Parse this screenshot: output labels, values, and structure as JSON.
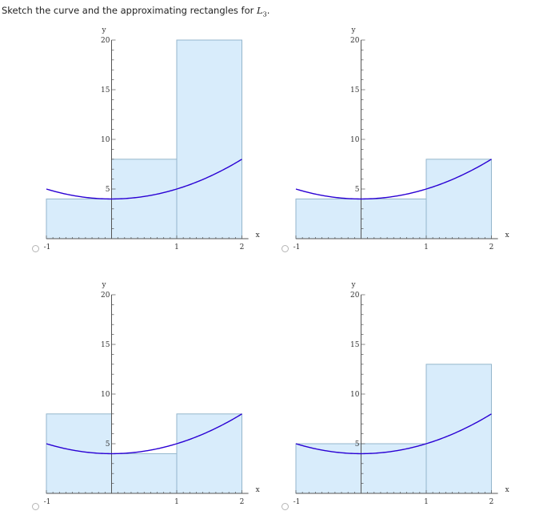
{
  "question": {
    "text": "Sketch the curve and the approximating rectangles for ",
    "math_main": "L",
    "math_sub": "3",
    "suffix": "."
  },
  "colors": {
    "curve": "#2a00d4",
    "rect_fill": "#d8ecfb",
    "rect_stroke": "#94b6cc",
    "axis": "#555555"
  },
  "chart_data": [
    {
      "type": "area",
      "function": "y = x^2 + 4",
      "x_range": [
        -1,
        2
      ],
      "xlim": [
        -1,
        2.1
      ],
      "ylim": [
        0,
        20
      ],
      "xlabel": "x",
      "ylabel": "y",
      "x_ticks": [
        "-1",
        "1",
        "2"
      ],
      "y_ticks": [
        "5",
        "10",
        "15",
        "20"
      ],
      "rectangles": [
        {
          "x0": -1,
          "x1": 0,
          "height": 4
        },
        {
          "x0": 0,
          "x1": 1,
          "height": 8
        },
        {
          "x0": 1,
          "x1": 2,
          "height": 20
        }
      ],
      "selected": false
    },
    {
      "type": "area",
      "function": "y = x^2 + 4",
      "x_range": [
        -1,
        2
      ],
      "xlim": [
        -1,
        2.1
      ],
      "ylim": [
        0,
        20
      ],
      "xlabel": "x",
      "ylabel": "y",
      "x_ticks": [
        "-1",
        "1",
        "2"
      ],
      "y_ticks": [
        "5",
        "10",
        "15",
        "20"
      ],
      "rectangles": [
        {
          "x0": -1,
          "x1": 0,
          "height": 4
        },
        {
          "x0": 0,
          "x1": 1,
          "height": 4
        },
        {
          "x0": 1,
          "x1": 2,
          "height": 8
        }
      ],
      "selected": false
    },
    {
      "type": "area",
      "function": "y = x^2 + 4",
      "x_range": [
        -1,
        2
      ],
      "xlim": [
        -1,
        2.1
      ],
      "ylim": [
        0,
        20
      ],
      "xlabel": "x",
      "ylabel": "y",
      "x_ticks": [
        "-1",
        "1",
        "2"
      ],
      "y_ticks": [
        "5",
        "10",
        "15",
        "20"
      ],
      "rectangles": [
        {
          "x0": -1,
          "x1": 0,
          "height": 8
        },
        {
          "x0": 0,
          "x1": 1,
          "height": 4
        },
        {
          "x0": 1,
          "x1": 2,
          "height": 8
        }
      ],
      "selected": false
    },
    {
      "type": "area",
      "function": "y = x^2 + 4",
      "x_range": [
        -1,
        2
      ],
      "xlim": [
        -1,
        2.1
      ],
      "ylim": [
        0,
        20
      ],
      "xlabel": "x",
      "ylabel": "y",
      "x_ticks": [
        "-1",
        "1",
        "2"
      ],
      "y_ticks": [
        "5",
        "10",
        "15",
        "20"
      ],
      "rectangles": [
        {
          "x0": -1,
          "x1": 0,
          "height": 5
        },
        {
          "x0": 0,
          "x1": 1,
          "height": 5
        },
        {
          "x0": 1,
          "x1": 2,
          "height": 13
        }
      ],
      "selected": false
    }
  ]
}
